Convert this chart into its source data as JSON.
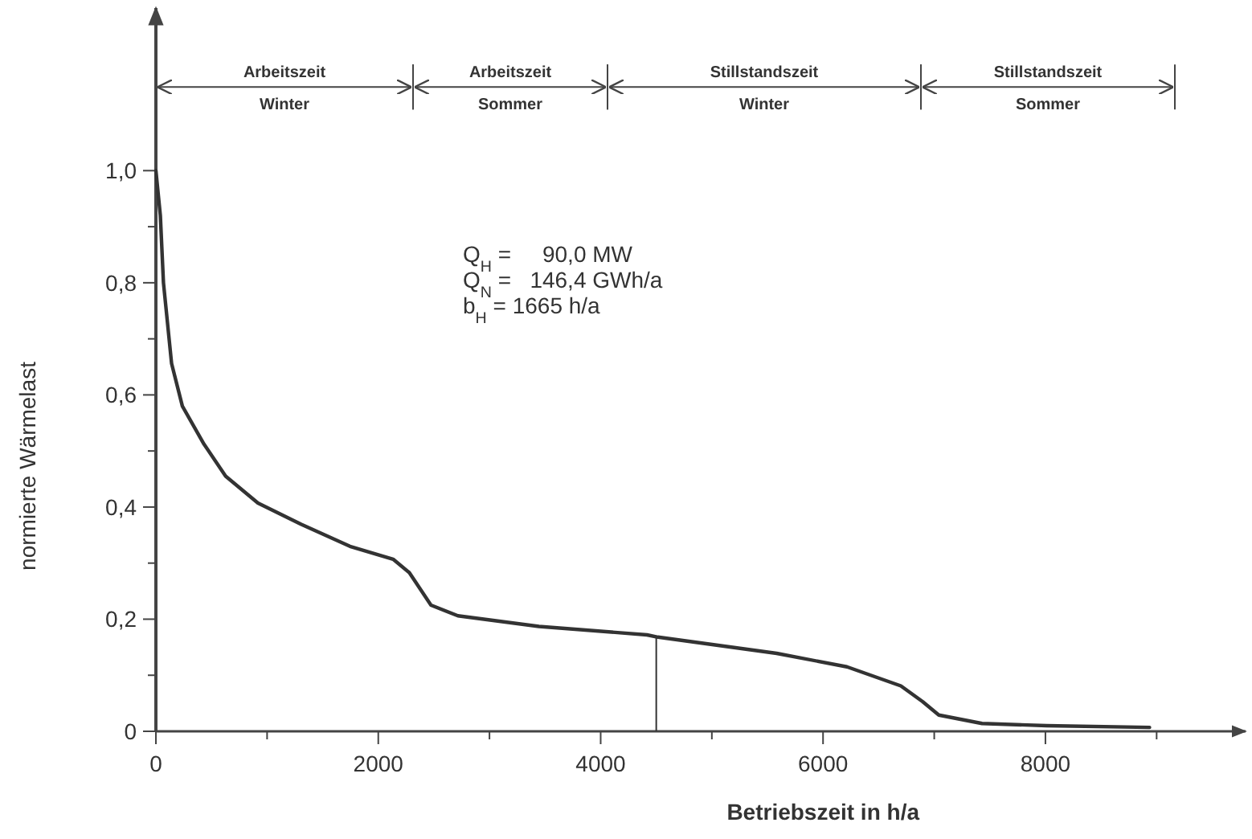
{
  "chart_data": {
    "type": "line",
    "xlabel": "Betriebszeit  in h/a",
    "ylabel": "normierte Wärmelast",
    "x": [
      0,
      40,
      68,
      141,
      238,
      433,
      627,
      918,
      1308,
      1745,
      2133,
      2279,
      2474,
      2716,
      3445,
      4417,
      4515,
      5583,
      6215,
      6700,
      6895,
      7041,
      7430,
      8012,
      8936
    ],
    "series": [
      {
        "color": "#333333",
        "values": [
          1.0,
          0.92,
          0.8,
          0.656,
          0.58,
          0.512,
          0.455,
          0.407,
          0.369,
          0.33,
          0.307,
          0.283,
          0.225,
          0.206,
          0.187,
          0.172,
          0.168,
          0.139,
          0.115,
          0.081,
          0.053,
          0.029,
          0.014,
          0.01,
          0.007
        ]
      }
    ],
    "xlim": [
      0,
      9800
    ],
    "ylim": [
      0,
      1.29
    ],
    "xticks": [
      0,
      {
        "value": 1000,
        "label": null
      },
      2000,
      {
        "value": 3000,
        "label": null
      },
      4000,
      {
        "value": 5000,
        "label": null
      },
      6000,
      {
        "value": 7000,
        "label": null
      },
      8000,
      {
        "value": 9000,
        "label": null
      }
    ],
    "yticks": [
      {
        "value": 0,
        "label": "0"
      },
      {
        "value": 0.1,
        "label": null
      },
      {
        "value": 0.2,
        "label": "0,2"
      },
      {
        "value": 0.3,
        "label": null
      },
      {
        "value": 0.4,
        "label": "0,4"
      },
      {
        "value": 0.5,
        "label": null
      },
      {
        "value": 0.6,
        "label": "0,6"
      },
      {
        "value": 0.7,
        "label": null
      },
      {
        "value": 0.8,
        "label": "0,8"
      },
      {
        "value": 0.9,
        "label": null
      },
      {
        "value": 1.0,
        "label": "1,0"
      }
    ],
    "grid": false,
    "marker": "none",
    "line_style": "solid",
    "ref_lines": [
      {
        "axis": "x",
        "value": 4500,
        "color": "#333333"
      }
    ],
    "annotations": [
      "Arbeitszeit\nWinter",
      "Arbeitszeit\nSommer",
      "Stillstandszeit\nWinter",
      "Stillstandszeit\nSommer",
      "Q$_{H}$ =     90,0 MW",
      "Q$_{N}$ =   146,4 GWh/a",
      "b$_{H}$ = 1665 h/a"
    ]
  }
}
